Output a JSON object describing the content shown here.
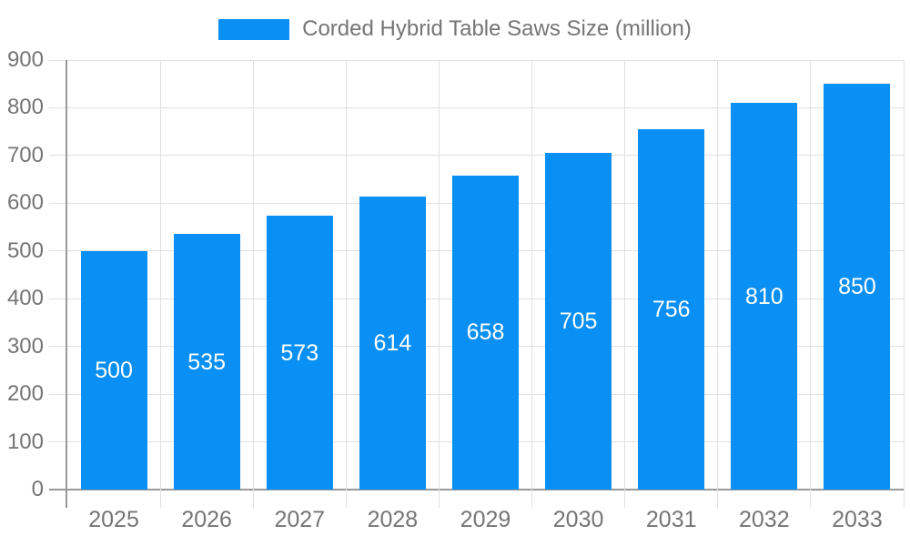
{
  "chart_data": {
    "type": "bar",
    "title": "Corded Hybrid Table Saws Size (million)",
    "legend": [
      "Corded Hybrid Table Saws Size (million)"
    ],
    "legend_position": "top",
    "categories": [
      "2025",
      "2026",
      "2027",
      "2028",
      "2029",
      "2030",
      "2031",
      "2032",
      "2033"
    ],
    "series": [
      {
        "name": "Corded Hybrid Table Saws Size (million)",
        "values": [
          500,
          535,
          573,
          614,
          658,
          705,
          756,
          810,
          850
        ]
      }
    ],
    "value_labels_shown": true,
    "value_label_position": "inside-center",
    "xlabel": "",
    "ylabel": "",
    "ylim": [
      0,
      900
    ],
    "ytick_interval": 100,
    "yticks": [
      0,
      100,
      200,
      300,
      400,
      500,
      600,
      700,
      800,
      900
    ],
    "grid": true,
    "colors": {
      "bar": "#0a8ff4",
      "grid_line": "#e0e0e0",
      "axis_line": "#999999",
      "axis_label": "#757575",
      "legend_text": "#757575",
      "value_label": "#ffffff",
      "background": "#ffffff"
    }
  }
}
